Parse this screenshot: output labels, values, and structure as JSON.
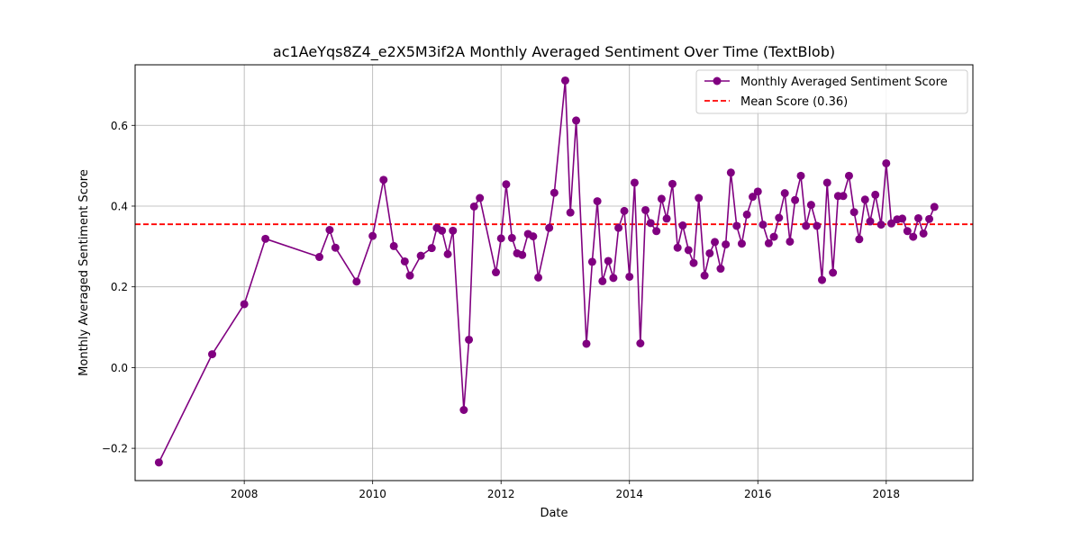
{
  "chart_data": {
    "type": "line",
    "title": "ac1AeYqs8Z4_e2X5M3if2A Monthly Averaged Sentiment Over Time (TextBlob)",
    "xlabel": "Date",
    "ylabel": "Monthly Averaged Sentiment Score",
    "xlim": [
      2006.3,
      2019.35
    ],
    "ylim": [
      -0.28,
      0.75
    ],
    "xticks": [
      2008,
      2010,
      2012,
      2014,
      2016,
      2018
    ],
    "xtick_labels": [
      "2008",
      "2010",
      "2012",
      "2014",
      "2016",
      "2018"
    ],
    "yticks": [
      -0.2,
      0.0,
      0.2,
      0.4,
      0.6
    ],
    "ytick_labels": [
      "−0.2",
      "0.0",
      "0.2",
      "0.4",
      "0.6"
    ],
    "grid": true,
    "legend_position": "top-right",
    "series": [
      {
        "name": "Monthly Averaged Sentiment Score",
        "color": "#800080",
        "marker": "circle",
        "x": [
          2006.67,
          2007.5,
          2008.0,
          2008.33,
          2009.17,
          2009.33,
          2009.42,
          2009.75,
          2010.0,
          2010.17,
          2010.33,
          2010.5,
          2010.58,
          2010.75,
          2010.92,
          2011.0,
          2011.08,
          2011.17,
          2011.25,
          2011.42,
          2011.5,
          2011.58,
          2011.67,
          2011.92,
          2012.0,
          2012.08,
          2012.17,
          2012.25,
          2012.33,
          2012.42,
          2012.5,
          2012.58,
          2012.75,
          2012.83,
          2013.0,
          2013.08,
          2013.17,
          2013.33,
          2013.42,
          2013.5,
          2013.58,
          2013.67,
          2013.75,
          2013.83,
          2013.92,
          2014.0,
          2014.08,
          2014.17,
          2014.25,
          2014.33,
          2014.42,
          2014.5,
          2014.58,
          2014.67,
          2014.75,
          2014.83,
          2014.92,
          2015.0,
          2015.08,
          2015.17,
          2015.25,
          2015.33,
          2015.42,
          2015.5,
          2015.58,
          2015.67,
          2015.75,
          2015.83,
          2015.92,
          2016.0,
          2016.08,
          2016.17,
          2016.25,
          2016.33,
          2016.42,
          2016.5,
          2016.58,
          2016.67,
          2016.75,
          2016.83,
          2016.92,
          2017.0,
          2017.08,
          2017.17,
          2017.25,
          2017.33,
          2017.42,
          2017.5,
          2017.58,
          2017.67,
          2017.75,
          2017.83,
          2017.92,
          2018.0,
          2018.08,
          2018.17,
          2018.25,
          2018.33,
          2018.42,
          2018.5,
          2018.58,
          2018.67,
          2018.75
        ],
        "y": [
          -0.235,
          0.033,
          0.157,
          0.319,
          0.274,
          0.341,
          0.297,
          0.213,
          0.326,
          0.465,
          0.301,
          0.263,
          0.228,
          0.277,
          0.296,
          0.346,
          0.339,
          0.281,
          0.339,
          -0.105,
          0.069,
          0.399,
          0.42,
          0.236,
          0.32,
          0.454,
          0.321,
          0.283,
          0.279,
          0.331,
          0.325,
          0.223,
          0.346,
          0.433,
          0.711,
          0.384,
          0.612,
          0.059,
          0.262,
          0.412,
          0.214,
          0.264,
          0.222,
          0.346,
          0.388,
          0.225,
          0.458,
          0.06,
          0.39,
          0.358,
          0.338,
          0.418,
          0.369,
          0.455,
          0.297,
          0.352,
          0.291,
          0.259,
          0.42,
          0.228,
          0.283,
          0.311,
          0.245,
          0.305,
          0.483,
          0.351,
          0.307,
          0.379,
          0.423,
          0.436,
          0.354,
          0.308,
          0.324,
          0.371,
          0.432,
          0.312,
          0.415,
          0.475,
          0.351,
          0.403,
          0.351,
          0.217,
          0.458,
          0.235,
          0.425,
          0.425,
          0.475,
          0.385,
          0.318,
          0.416,
          0.362,
          0.428,
          0.354,
          0.506,
          0.357,
          0.367,
          0.369,
          0.338,
          0.324,
          0.37,
          0.332,
          0.368,
          0.398
        ]
      }
    ],
    "reference_lines": [
      {
        "name": "Mean Score (0.36)",
        "value": 0.355,
        "color": "#ff0000",
        "style": "dashed"
      }
    ]
  }
}
